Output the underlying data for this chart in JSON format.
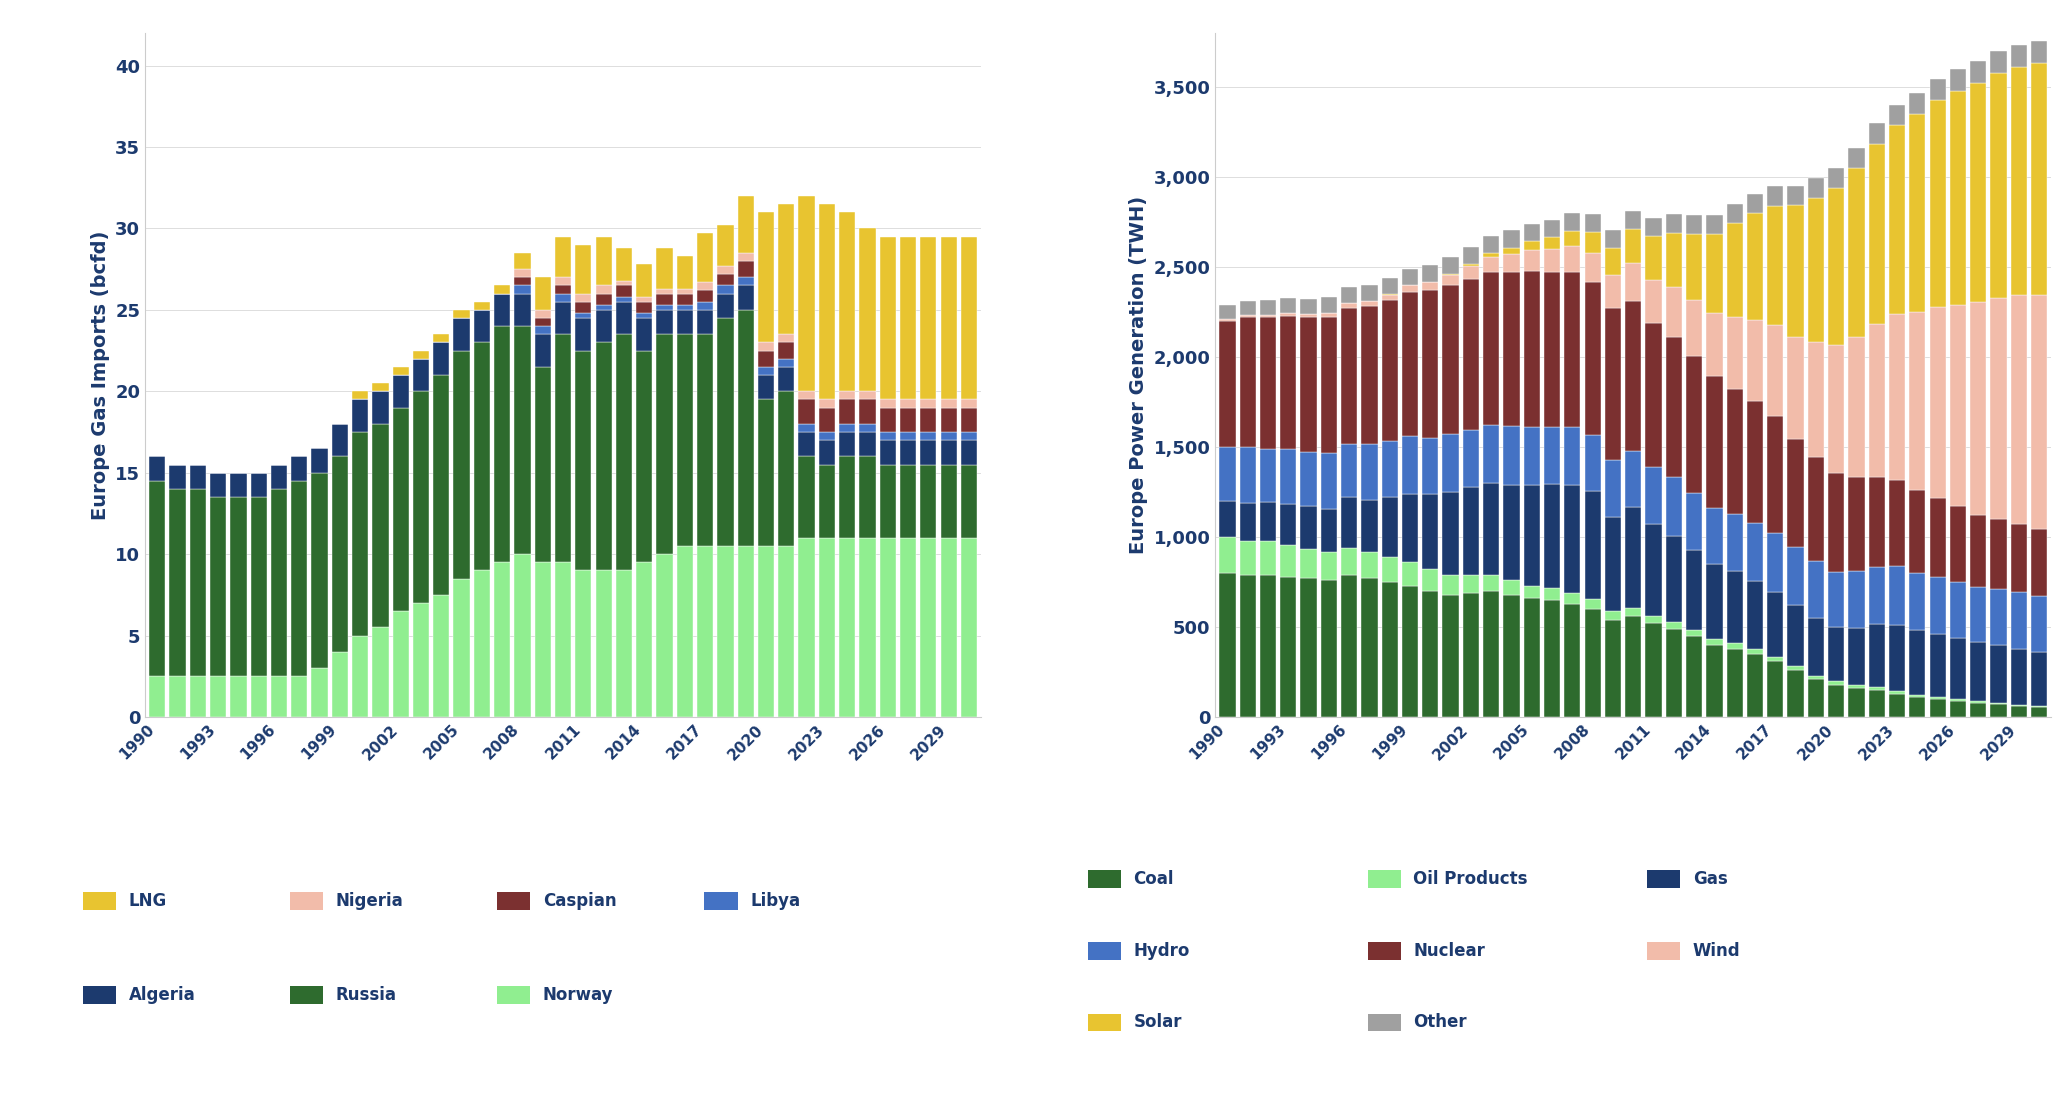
{
  "years": [
    1990,
    1991,
    1992,
    1993,
    1994,
    1995,
    1996,
    1997,
    1998,
    1999,
    2000,
    2001,
    2002,
    2003,
    2004,
    2005,
    2006,
    2007,
    2008,
    2009,
    2010,
    2011,
    2012,
    2013,
    2014,
    2015,
    2016,
    2017,
    2018,
    2019,
    2020,
    2021,
    2022,
    2023,
    2024,
    2025,
    2026,
    2027,
    2028,
    2029,
    2030
  ],
  "gas_imports": {
    "Norway": [
      2.5,
      2.5,
      2.5,
      2.5,
      2.5,
      2.5,
      2.5,
      2.5,
      3.0,
      4.0,
      5.0,
      5.5,
      6.5,
      7.0,
      7.5,
      8.5,
      9.0,
      9.5,
      10.0,
      9.5,
      9.5,
      9.0,
      9.0,
      9.0,
      9.5,
      10.0,
      10.5,
      10.5,
      10.5,
      10.5,
      10.5,
      10.5,
      11.0,
      11.0,
      11.0,
      11.0,
      11.0,
      11.0,
      11.0,
      11.0,
      11.0
    ],
    "Russia": [
      12.0,
      11.5,
      11.5,
      11.0,
      11.0,
      11.0,
      11.5,
      12.0,
      12.0,
      12.0,
      12.5,
      12.5,
      12.5,
      13.0,
      13.5,
      14.0,
      14.0,
      14.5,
      14.0,
      12.0,
      14.0,
      13.5,
      14.0,
      14.5,
      13.0,
      13.5,
      13.0,
      13.0,
      14.0,
      14.5,
      9.0,
      9.5,
      5.0,
      4.5,
      5.0,
      5.0,
      4.5,
      4.5,
      4.5,
      4.5,
      4.5
    ],
    "Algeria": [
      1.5,
      1.5,
      1.5,
      1.5,
      1.5,
      1.5,
      1.5,
      1.5,
      1.5,
      2.0,
      2.0,
      2.0,
      2.0,
      2.0,
      2.0,
      2.0,
      2.0,
      2.0,
      2.0,
      2.0,
      2.0,
      2.0,
      2.0,
      2.0,
      2.0,
      1.5,
      1.5,
      1.5,
      1.5,
      1.5,
      1.5,
      1.5,
      1.5,
      1.5,
      1.5,
      1.5,
      1.5,
      1.5,
      1.5,
      1.5,
      1.5
    ],
    "Libya": [
      0.0,
      0.0,
      0.0,
      0.0,
      0.0,
      0.0,
      0.0,
      0.0,
      0.0,
      0.0,
      0.0,
      0.0,
      0.0,
      0.0,
      0.0,
      0.0,
      0.0,
      0.0,
      0.5,
      0.5,
      0.5,
      0.3,
      0.3,
      0.3,
      0.3,
      0.3,
      0.3,
      0.5,
      0.5,
      0.5,
      0.5,
      0.5,
      0.5,
      0.5,
      0.5,
      0.5,
      0.5,
      0.5,
      0.5,
      0.5,
      0.5
    ],
    "Caspian": [
      0.0,
      0.0,
      0.0,
      0.0,
      0.0,
      0.0,
      0.0,
      0.0,
      0.0,
      0.0,
      0.0,
      0.0,
      0.0,
      0.0,
      0.0,
      0.0,
      0.0,
      0.0,
      0.5,
      0.5,
      0.5,
      0.7,
      0.7,
      0.7,
      0.7,
      0.7,
      0.7,
      0.7,
      0.7,
      1.0,
      1.0,
      1.0,
      1.5,
      1.5,
      1.5,
      1.5,
      1.5,
      1.5,
      1.5,
      1.5,
      1.5
    ],
    "Nigeria": [
      0.0,
      0.0,
      0.0,
      0.0,
      0.0,
      0.0,
      0.0,
      0.0,
      0.0,
      0.0,
      0.0,
      0.0,
      0.0,
      0.0,
      0.0,
      0.0,
      0.0,
      0.0,
      0.5,
      0.5,
      0.5,
      0.5,
      0.5,
      0.3,
      0.3,
      0.3,
      0.3,
      0.5,
      0.5,
      0.5,
      0.5,
      0.5,
      0.5,
      0.5,
      0.5,
      0.5,
      0.5,
      0.5,
      0.5,
      0.5,
      0.5
    ],
    "LNG": [
      0.0,
      0.0,
      0.0,
      0.0,
      0.0,
      0.0,
      0.0,
      0.0,
      0.0,
      0.0,
      0.5,
      0.5,
      0.5,
      0.5,
      0.5,
      0.5,
      0.5,
      0.5,
      1.0,
      2.0,
      2.5,
      3.0,
      3.0,
      2.0,
      2.0,
      2.5,
      2.0,
      3.0,
      2.5,
      3.5,
      8.0,
      8.0,
      12.0,
      12.0,
      11.0,
      10.0,
      10.0,
      10.0,
      10.0,
      10.0,
      10.0
    ]
  },
  "gas_colors": {
    "Norway": "#90EE90",
    "Russia": "#2E6B2E",
    "Algeria": "#1C3A6E",
    "Libya": "#4472C4",
    "Caspian": "#7B3030",
    "Nigeria": "#F2BCAA",
    "LNG": "#E8C430"
  },
  "gas_ylabel": "Europe Gas Imports (bcfd)",
  "gas_ylim": [
    0,
    42
  ],
  "gas_yticks": [
    0,
    5,
    10,
    15,
    20,
    25,
    30,
    35,
    40
  ],
  "power_gen": {
    "Coal": [
      800,
      790,
      790,
      780,
      770,
      760,
      790,
      770,
      750,
      730,
      700,
      680,
      690,
      700,
      680,
      660,
      650,
      630,
      600,
      540,
      560,
      520,
      490,
      450,
      400,
      380,
      350,
      310,
      260,
      210,
      180,
      160,
      150,
      130,
      110,
      100,
      90,
      80,
      70,
      60,
      55
    ],
    "Oil_Products": [
      200,
      190,
      185,
      175,
      165,
      155,
      150,
      145,
      140,
      130,
      120,
      110,
      100,
      90,
      80,
      70,
      65,
      60,
      55,
      50,
      45,
      40,
      38,
      35,
      32,
      30,
      28,
      25,
      22,
      20,
      18,
      16,
      15,
      13,
      12,
      11,
      10,
      9,
      9,
      8,
      8
    ],
    "Gas": [
      200,
      210,
      220,
      230,
      235,
      240,
      280,
      290,
      330,
      380,
      420,
      460,
      490,
      510,
      530,
      560,
      580,
      600,
      600,
      520,
      560,
      510,
      480,
      440,
      420,
      400,
      380,
      360,
      340,
      320,
      300,
      320,
      350,
      370,
      360,
      350,
      340,
      330,
      320,
      310,
      300
    ],
    "Hydro": [
      300,
      310,
      295,
      305,
      300,
      310,
      295,
      310,
      315,
      320,
      310,
      320,
      315,
      320,
      325,
      320,
      315,
      320,
      310,
      320,
      315,
      320,
      325,
      320,
      310,
      315,
      320,
      325,
      320,
      315,
      310,
      315,
      320,
      325,
      320,
      315,
      310,
      305,
      310,
      315,
      310
    ],
    "Nuclear": [
      700,
      720,
      730,
      740,
      750,
      760,
      760,
      770,
      780,
      800,
      820,
      830,
      840,
      850,
      860,
      870,
      860,
      860,
      850,
      840,
      830,
      800,
      780,
      760,
      730,
      700,
      680,
      650,
      600,
      580,
      550,
      520,
      500,
      480,
      460,
      440,
      420,
      400,
      390,
      380,
      370
    ],
    "Wind": [
      10,
      12,
      14,
      16,
      18,
      22,
      25,
      28,
      32,
      38,
      45,
      55,
      70,
      85,
      100,
      115,
      130,
      145,
      165,
      185,
      210,
      240,
      275,
      310,
      350,
      400,
      450,
      510,
      570,
      640,
      710,
      780,
      850,
      920,
      990,
      1060,
      1120,
      1180,
      1230,
      1270,
      1300
    ],
    "Solar": [
      0,
      0,
      0,
      0,
      0,
      0,
      0,
      0,
      1,
      2,
      4,
      8,
      14,
      22,
      33,
      48,
      65,
      85,
      115,
      150,
      190,
      240,
      300,
      370,
      440,
      520,
      590,
      660,
      730,
      800,
      870,
      940,
      1000,
      1050,
      1100,
      1150,
      1190,
      1220,
      1250,
      1270,
      1290
    ],
    "Other": [
      80,
      82,
      83,
      84,
      85,
      86,
      87,
      88,
      89,
      90,
      92,
      93,
      94,
      95,
      96,
      97,
      98,
      99,
      100,
      100,
      102,
      103,
      104,
      105,
      106,
      107,
      108,
      109,
      110,
      111,
      112,
      113,
      114,
      115,
      116,
      117,
      118,
      119,
      120,
      121,
      122
    ]
  },
  "power_colors": {
    "Coal": "#2E6B2E",
    "Oil_Products": "#90EE90",
    "Gas": "#1C3A6E",
    "Hydro": "#4472C4",
    "Nuclear": "#7B3030",
    "Wind": "#F2BCAA",
    "Solar": "#E8C430",
    "Other": "#A0A0A0"
  },
  "power_ylabel": "Europe Power Generation (TWH)",
  "power_ylim": [
    0,
    3800
  ],
  "power_yticks": [
    0,
    500,
    1000,
    1500,
    2000,
    2500,
    3000,
    3500
  ],
  "legend1_row1": [
    {
      "label": "LNG",
      "color": "#E8C430"
    },
    {
      "label": "Nigeria",
      "color": "#F2BCAA"
    },
    {
      "label": "Caspian",
      "color": "#7B3030"
    },
    {
      "label": "Libya",
      "color": "#4472C4"
    }
  ],
  "legend1_row2": [
    {
      "label": "Algeria",
      "color": "#1C3A6E"
    },
    {
      "label": "Russia",
      "color": "#2E6B2E"
    },
    {
      "label": "Norway",
      "color": "#90EE90"
    }
  ],
  "legend2_row1": [
    {
      "label": "Coal",
      "color": "#2E6B2E"
    },
    {
      "label": "Oil Products",
      "color": "#90EE90"
    },
    {
      "label": "Gas",
      "color": "#1C3A6E"
    }
  ],
  "legend2_row2": [
    {
      "label": "Hydro",
      "color": "#4472C4"
    },
    {
      "label": "Nuclear",
      "color": "#7B3030"
    },
    {
      "label": "Wind",
      "color": "#F2BCAA"
    }
  ],
  "legend2_row3": [
    {
      "label": "Solar",
      "color": "#E8C430"
    },
    {
      "label": "Other",
      "color": "#A0A0A0"
    }
  ],
  "text_color": "#1C3A6E",
  "bar_width": 0.8
}
